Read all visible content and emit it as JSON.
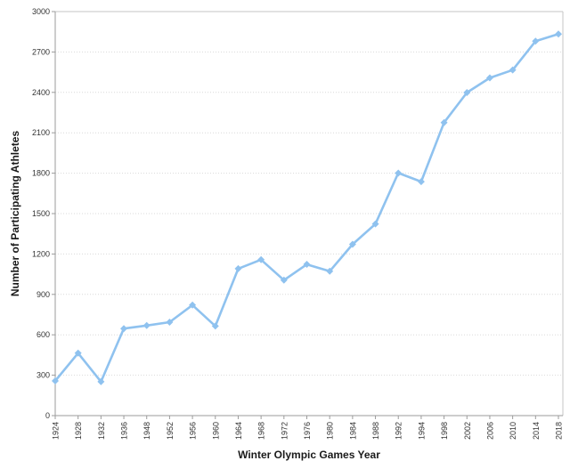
{
  "chart_data": {
    "type": "line",
    "title": "",
    "xlabel": "Winter Olympic Games Year",
    "ylabel": "Number of Participating Athletes",
    "categories": [
      "1924",
      "1928",
      "1932",
      "1936",
      "1948",
      "1952",
      "1956",
      "1960",
      "1964",
      "1968",
      "1972",
      "1976",
      "1980",
      "1984",
      "1988",
      "1992",
      "1994",
      "1998",
      "2002",
      "2006",
      "2010",
      "2014",
      "2018"
    ],
    "series": [
      {
        "name": "Participating Athletes",
        "values": [
          258,
          464,
          252,
          646,
          669,
          694,
          821,
          665,
          1091,
          1158,
          1006,
          1123,
          1072,
          1272,
          1423,
          1801,
          1737,
          2176,
          2399,
          2508,
          2566,
          2780,
          2833
        ]
      }
    ],
    "ylim": [
      0,
      3000
    ],
    "yticks": [
      0,
      300,
      600,
      900,
      1200,
      1500,
      1800,
      2100,
      2400,
      2700,
      3000
    ],
    "x_tick_rotation": 90,
    "grid": "horizontal-dotted",
    "legend": "none",
    "marker": "diamond",
    "colors": {
      "line": "#8FC2EF",
      "marker": "#8FC2EF",
      "grid": "#D9D9D9",
      "axis": "#9B9B9B",
      "plot_border": "#C6C6C6",
      "tick_text": "#333333",
      "title_text": "#1a1a1a",
      "background": "#FFFFFF"
    }
  }
}
